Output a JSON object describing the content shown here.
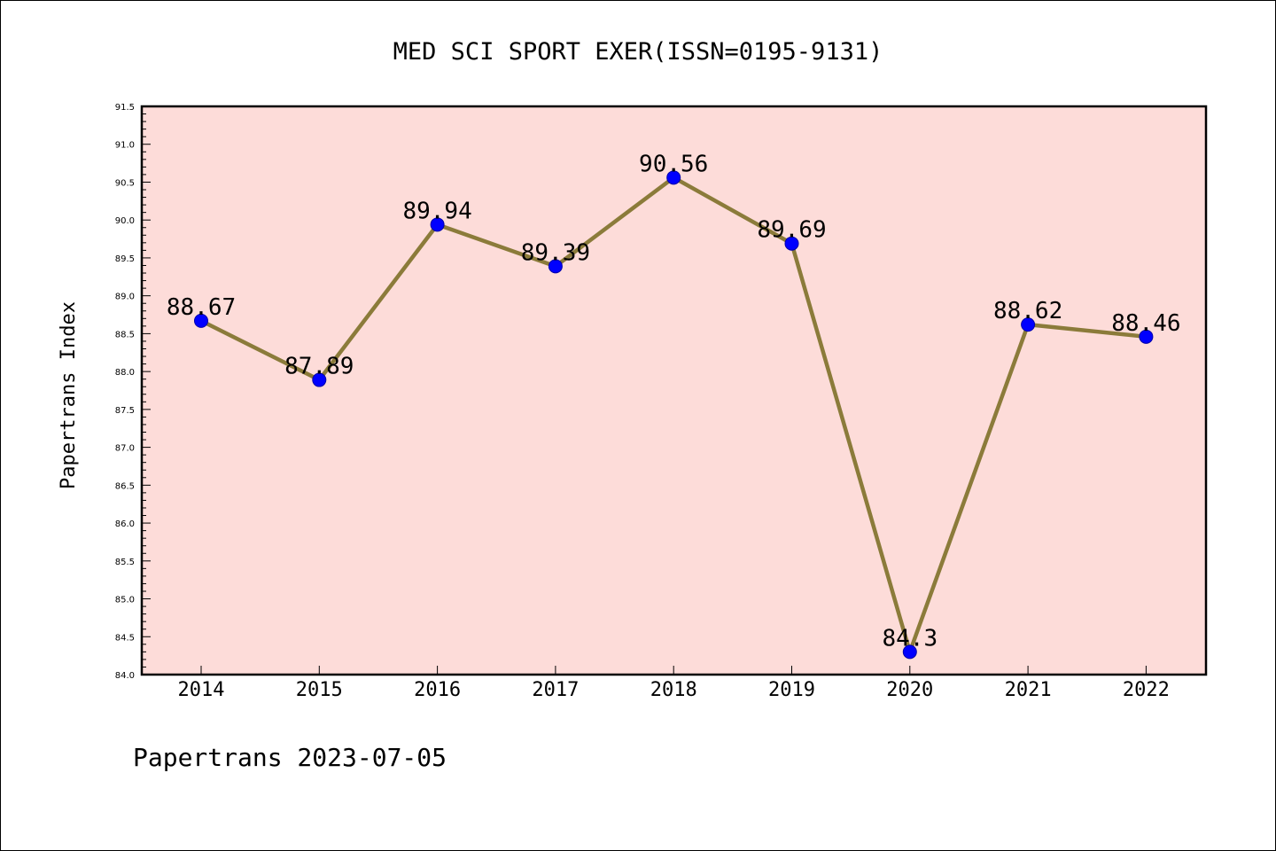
{
  "chart_data": {
    "type": "line",
    "title": "MED SCI SPORT EXER(ISSN=0195-9131)",
    "xlabel": "",
    "ylabel": "Papertrans Index",
    "categories": [
      "2014",
      "2015",
      "2016",
      "2017",
      "2018",
      "2019",
      "2020",
      "2021",
      "2022"
    ],
    "values": [
      88.67,
      87.89,
      89.94,
      89.39,
      90.56,
      89.69,
      84.3,
      88.62,
      88.46
    ],
    "data_labels": [
      "88.67",
      "87.89",
      "89.94",
      "89.39",
      "90.56",
      "89.69",
      "84.3",
      "88.62",
      "88.46"
    ],
    "ylim": [
      84.0,
      91.5
    ],
    "yticks": [
      "84.0",
      "84.5",
      "85.0",
      "85.5",
      "86.0",
      "86.5",
      "87.0",
      "87.5",
      "88.0",
      "88.5",
      "89.0",
      "89.5",
      "90.0",
      "90.5",
      "91.0",
      "91.5"
    ],
    "grid": false,
    "colors": {
      "plot_background": "#fddcd9",
      "line": "#8b7b3a",
      "marker": "#0000ff"
    }
  },
  "footer": "Papertrans 2023-07-05"
}
